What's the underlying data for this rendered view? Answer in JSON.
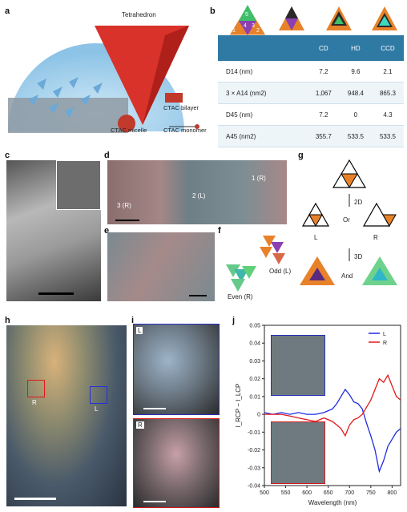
{
  "panels": {
    "a": "a",
    "b": "b",
    "c": "c",
    "d": "d",
    "e": "e",
    "f": "f",
    "g": "g",
    "h": "h",
    "i": "i",
    "j": "j"
  },
  "panel_a": {
    "tetrahedron": "Tetrahedron",
    "ctac_bilayer": "CTAC bilayer",
    "ctac_micelle": "CTAC micelle",
    "ctac_monomer": "CTAC monomer"
  },
  "panel_b": {
    "headers": [
      "",
      "CD",
      "HD",
      "CCD"
    ],
    "rows": [
      {
        "label": "D14 (nm)",
        "sub": "14",
        "values": [
          "7.2",
          "9.6",
          "2.1"
        ]
      },
      {
        "label": "3 × A14 (nm2)",
        "values": [
          "1,067",
          "948.4",
          "865.3"
        ]
      },
      {
        "label": "D45 (nm)",
        "values": [
          "7.2",
          "0",
          "4.3"
        ]
      },
      {
        "label": "A45 (nm2)",
        "values": [
          "355.7",
          "533.5",
          "533.5"
        ]
      }
    ],
    "face_numbers": [
      "1",
      "2",
      "3",
      "4",
      "5"
    ]
  },
  "panel_d": {
    "labels": [
      "3 (R)",
      "2 (L)",
      "1 (R)"
    ]
  },
  "panel_f": {
    "even": "Even (R)",
    "odd": "Odd (L)"
  },
  "panel_g": {
    "step_2d": "2D",
    "step_3d": "3D",
    "or": "Or",
    "and": "And",
    "L": "L",
    "R": "R"
  },
  "panel_h": {
    "R": "R",
    "L": "L"
  },
  "panel_i": {
    "L": "L",
    "R": "R"
  },
  "chart_data": {
    "type": "line",
    "xlabel": "Wavelength (nm)",
    "ylabel": "I_RCP − I_LCP",
    "xlim": [
      500,
      820
    ],
    "ylim": [
      -0.04,
      0.05
    ],
    "xticks": [
      "500",
      "550",
      "600",
      "650",
      "700",
      "750",
      "800"
    ],
    "yticks": [
      "0.05",
      "0.04",
      "0.03",
      "0.02",
      "0.01",
      "0",
      "-0.01",
      "-0.02",
      "-0.03",
      "-0.04"
    ],
    "legend_position": "top-right",
    "series": [
      {
        "name": "L",
        "color": "#1f2be0",
        "x": [
          500,
          520,
          540,
          560,
          580,
          600,
          620,
          640,
          660,
          670,
          680,
          690,
          700,
          710,
          720,
          730,
          740,
          750,
          760,
          770,
          780,
          790,
          800,
          810,
          820
        ],
        "y": [
          0.001,
          0.0,
          0.001,
          0.0,
          0.001,
          0.0,
          0.0,
          0.001,
          0.003,
          0.006,
          0.01,
          0.014,
          0.011,
          0.007,
          0.006,
          0.003,
          -0.005,
          -0.012,
          -0.02,
          -0.032,
          -0.026,
          -0.018,
          -0.014,
          -0.01,
          -0.008
        ]
      },
      {
        "name": "R",
        "color": "#e21a1a",
        "x": [
          500,
          520,
          540,
          560,
          580,
          600,
          620,
          640,
          660,
          670,
          680,
          690,
          700,
          710,
          720,
          730,
          740,
          750,
          760,
          770,
          780,
          790,
          800,
          810,
          820
        ],
        "y": [
          0.0,
          0.0,
          0.0,
          -0.001,
          -0.002,
          -0.003,
          -0.004,
          -0.002,
          -0.004,
          -0.006,
          -0.008,
          -0.012,
          -0.006,
          -0.003,
          -0.002,
          0.0,
          0.004,
          0.008,
          0.014,
          0.02,
          0.018,
          0.022,
          0.016,
          0.01,
          0.008
        ]
      }
    ]
  }
}
